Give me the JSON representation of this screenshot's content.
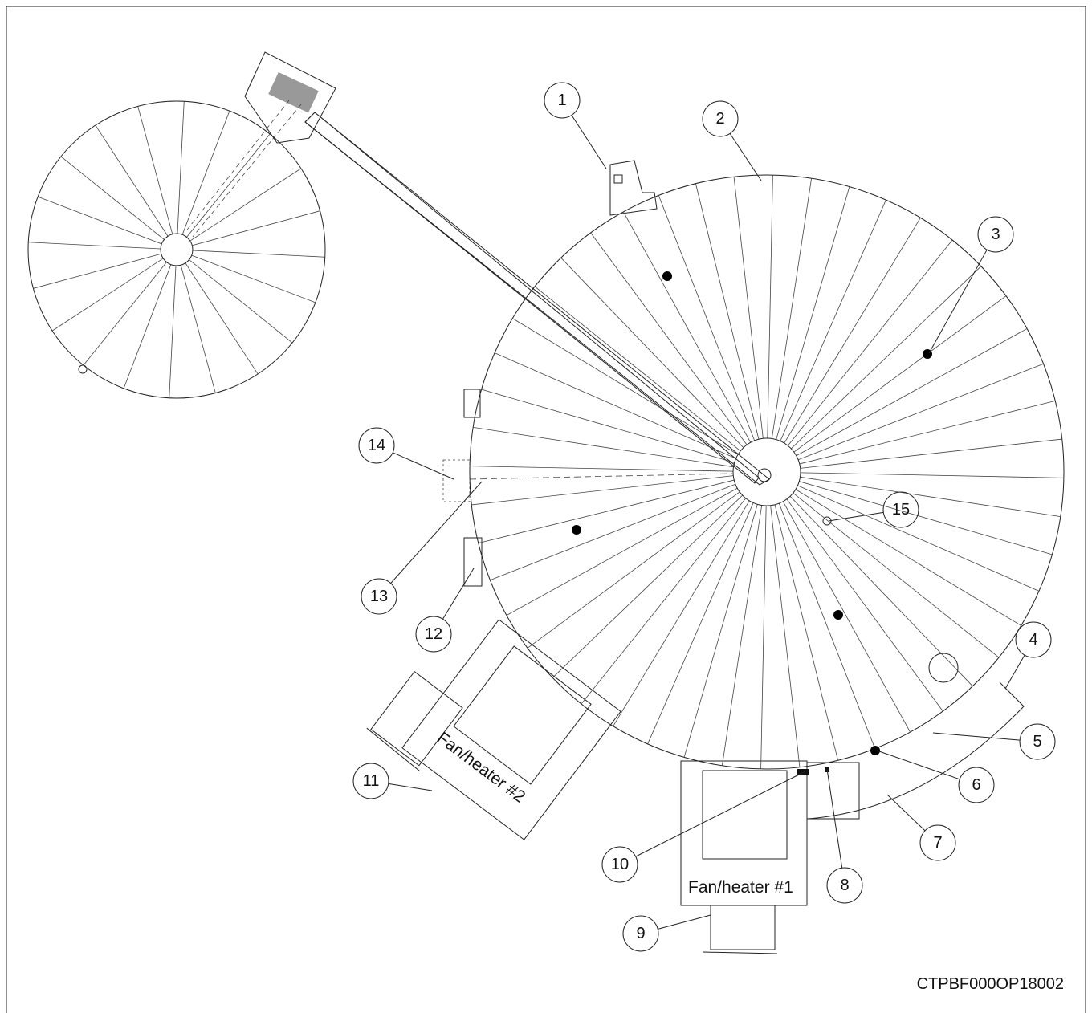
{
  "callouts": [
    "1",
    "2",
    "3",
    "4",
    "5",
    "6",
    "7",
    "8",
    "9",
    "10",
    "11",
    "12",
    "13",
    "14",
    "15"
  ],
  "fan_heaters": [
    "Fan/heater #1",
    "Fan/heater #2"
  ],
  "figure_id": "CTPBF000OP18002"
}
